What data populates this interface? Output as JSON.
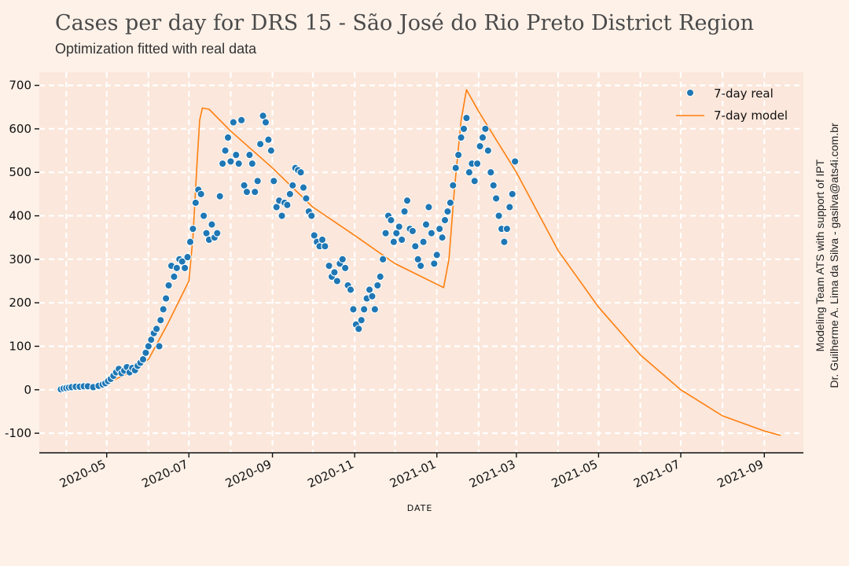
{
  "header": {
    "title": "Cases per day for DRS 15 - São José do Rio Preto District Region",
    "subtitle": "Optimization fitted with real data"
  },
  "credit": {
    "line1": "Modeling Team ATS with support of IPT",
    "line2": "Dr. Guilherme A. Lima da Silva - gasilva@ats4i.com.br"
  },
  "colors": {
    "background": "#fdf1e8",
    "plot_area": "#fbe7db",
    "real": "#1f77b4",
    "model": "#ff7f0e"
  },
  "chart_data": {
    "type": "scatter",
    "title": "Cases per day for DRS 15 - São José do Rio Preto District Region",
    "subtitle": "Optimization fitted with real data",
    "xlabel": "DATE",
    "ylabel": "",
    "xlim": [
      "2020-03-12",
      "2021-09-30"
    ],
    "ylim": [
      -145,
      730
    ],
    "yticks": [
      -100,
      0,
      100,
      200,
      300,
      400,
      500,
      600,
      700
    ],
    "xticks": [
      "2020-05-01",
      "2020-07-01",
      "2020-09-01",
      "2020-11-01",
      "2021-01-01",
      "2021-03-01",
      "2021-05-01",
      "2021-07-01",
      "2021-09-01"
    ],
    "xtick_labels": [
      "2020-05",
      "2020-07",
      "2020-09",
      "2020-11",
      "2021-01",
      "2021-03",
      "2021-05",
      "2021-07",
      "2021-09"
    ],
    "grid": true,
    "legend": {
      "position": "top-right",
      "entries": [
        "7-day real",
        "7-day model"
      ]
    },
    "series": [
      {
        "name": "7-day real",
        "kind": "scatter",
        "points": [
          [
            "2020-03-28",
            1
          ],
          [
            "2020-03-30",
            3
          ],
          [
            "2020-04-01",
            4
          ],
          [
            "2020-04-03",
            5
          ],
          [
            "2020-04-05",
            6
          ],
          [
            "2020-04-08",
            7
          ],
          [
            "2020-04-11",
            7
          ],
          [
            "2020-04-14",
            8
          ],
          [
            "2020-04-17",
            8
          ],
          [
            "2020-04-21",
            6
          ],
          [
            "2020-04-25",
            9
          ],
          [
            "2020-04-28",
            12
          ],
          [
            "2020-04-30",
            15
          ],
          [
            "2020-05-02",
            20
          ],
          [
            "2020-05-04",
            25
          ],
          [
            "2020-05-06",
            32
          ],
          [
            "2020-05-08",
            40
          ],
          [
            "2020-05-10",
            48
          ],
          [
            "2020-05-12",
            38
          ],
          [
            "2020-05-14",
            44
          ],
          [
            "2020-05-16",
            52
          ],
          [
            "2020-05-18",
            40
          ],
          [
            "2020-05-20",
            50
          ],
          [
            "2020-05-22",
            45
          ],
          [
            "2020-05-24",
            55
          ],
          [
            "2020-05-26",
            62
          ],
          [
            "2020-05-28",
            70
          ],
          [
            "2020-05-30",
            85
          ],
          [
            "2020-06-01",
            100
          ],
          [
            "2020-06-03",
            115
          ],
          [
            "2020-06-05",
            130
          ],
          [
            "2020-06-07",
            140
          ],
          [
            "2020-06-09",
            100
          ],
          [
            "2020-06-10",
            160
          ],
          [
            "2020-06-12",
            185
          ],
          [
            "2020-06-14",
            210
          ],
          [
            "2020-06-16",
            240
          ],
          [
            "2020-06-18",
            285
          ],
          [
            "2020-06-20",
            260
          ],
          [
            "2020-06-22",
            280
          ],
          [
            "2020-06-24",
            300
          ],
          [
            "2020-06-26",
            295
          ],
          [
            "2020-06-28",
            280
          ],
          [
            "2020-06-30",
            305
          ],
          [
            "2020-07-02",
            340
          ],
          [
            "2020-07-04",
            370
          ],
          [
            "2020-07-06",
            430
          ],
          [
            "2020-07-08",
            460
          ],
          [
            "2020-07-10",
            450
          ],
          [
            "2020-07-12",
            400
          ],
          [
            "2020-07-14",
            360
          ],
          [
            "2020-07-16",
            345
          ],
          [
            "2020-07-18",
            380
          ],
          [
            "2020-07-20",
            350
          ],
          [
            "2020-07-22",
            360
          ],
          [
            "2020-07-24",
            445
          ],
          [
            "2020-07-26",
            520
          ],
          [
            "2020-07-28",
            550
          ],
          [
            "2020-07-30",
            580
          ],
          [
            "2020-08-01",
            525
          ],
          [
            "2020-08-03",
            615
          ],
          [
            "2020-08-05",
            540
          ],
          [
            "2020-08-07",
            520
          ],
          [
            "2020-08-09",
            620
          ],
          [
            "2020-08-11",
            470
          ],
          [
            "2020-08-13",
            455
          ],
          [
            "2020-08-15",
            540
          ],
          [
            "2020-08-17",
            520
          ],
          [
            "2020-08-19",
            455
          ],
          [
            "2020-08-21",
            480
          ],
          [
            "2020-08-23",
            565
          ],
          [
            "2020-08-25",
            630
          ],
          [
            "2020-08-27",
            615
          ],
          [
            "2020-08-29",
            575
          ],
          [
            "2020-08-31",
            550
          ],
          [
            "2020-09-02",
            480
          ],
          [
            "2020-09-04",
            420
          ],
          [
            "2020-09-06",
            435
          ],
          [
            "2020-09-08",
            400
          ],
          [
            "2020-09-10",
            430
          ],
          [
            "2020-09-12",
            425
          ],
          [
            "2020-09-14",
            450
          ],
          [
            "2020-09-16",
            470
          ],
          [
            "2020-09-18",
            510
          ],
          [
            "2020-09-20",
            505
          ],
          [
            "2020-09-22",
            500
          ],
          [
            "2020-09-24",
            465
          ],
          [
            "2020-09-26",
            440
          ],
          [
            "2020-09-28",
            410
          ],
          [
            "2020-09-30",
            400
          ],
          [
            "2020-10-02",
            355
          ],
          [
            "2020-10-04",
            340
          ],
          [
            "2020-10-06",
            330
          ],
          [
            "2020-10-08",
            345
          ],
          [
            "2020-10-10",
            330
          ],
          [
            "2020-10-13",
            285
          ],
          [
            "2020-10-15",
            260
          ],
          [
            "2020-10-17",
            270
          ],
          [
            "2020-10-19",
            250
          ],
          [
            "2020-10-21",
            290
          ],
          [
            "2020-10-23",
            300
          ],
          [
            "2020-10-25",
            280
          ],
          [
            "2020-10-27",
            240
          ],
          [
            "2020-10-29",
            230
          ],
          [
            "2020-10-31",
            185
          ],
          [
            "2020-11-02",
            150
          ],
          [
            "2020-11-04",
            140
          ],
          [
            "2020-11-06",
            160
          ],
          [
            "2020-11-08",
            185
          ],
          [
            "2020-11-10",
            210
          ],
          [
            "2020-11-12",
            230
          ],
          [
            "2020-11-14",
            215
          ],
          [
            "2020-11-16",
            185
          ],
          [
            "2020-11-18",
            240
          ],
          [
            "2020-11-20",
            260
          ],
          [
            "2020-11-22",
            300
          ],
          [
            "2020-11-24",
            360
          ],
          [
            "2020-11-26",
            400
          ],
          [
            "2020-11-28",
            390
          ],
          [
            "2020-11-30",
            340
          ],
          [
            "2020-12-02",
            360
          ],
          [
            "2020-12-04",
            375
          ],
          [
            "2020-12-06",
            345
          ],
          [
            "2020-12-08",
            410
          ],
          [
            "2020-12-10",
            435
          ],
          [
            "2020-12-12",
            370
          ],
          [
            "2020-12-14",
            365
          ],
          [
            "2020-12-16",
            330
          ],
          [
            "2020-12-18",
            300
          ],
          [
            "2020-12-20",
            285
          ],
          [
            "2020-12-22",
            340
          ],
          [
            "2020-12-24",
            380
          ],
          [
            "2020-12-26",
            420
          ],
          [
            "2020-12-28",
            360
          ],
          [
            "2020-12-30",
            290
          ],
          [
            "2021-01-01",
            310
          ],
          [
            "2021-01-03",
            370
          ],
          [
            "2021-01-05",
            350
          ],
          [
            "2021-01-07",
            390
          ],
          [
            "2021-01-09",
            410
          ],
          [
            "2021-01-11",
            430
          ],
          [
            "2021-01-13",
            470
          ],
          [
            "2021-01-15",
            510
          ],
          [
            "2021-01-17",
            540
          ],
          [
            "2021-01-19",
            580
          ],
          [
            "2021-01-21",
            600
          ],
          [
            "2021-01-23",
            625
          ],
          [
            "2021-01-25",
            500
          ],
          [
            "2021-01-27",
            520
          ],
          [
            "2021-01-29",
            480
          ],
          [
            "2021-01-31",
            520
          ],
          [
            "2021-02-02",
            560
          ],
          [
            "2021-02-04",
            580
          ],
          [
            "2021-02-06",
            600
          ],
          [
            "2021-02-08",
            550
          ],
          [
            "2021-02-10",
            500
          ],
          [
            "2021-02-12",
            470
          ],
          [
            "2021-02-14",
            440
          ],
          [
            "2021-02-16",
            400
          ],
          [
            "2021-02-18",
            370
          ],
          [
            "2021-02-20",
            340
          ],
          [
            "2021-02-22",
            370
          ],
          [
            "2021-02-24",
            420
          ],
          [
            "2021-02-26",
            450
          ],
          [
            "2021-02-28",
            525
          ]
        ]
      },
      {
        "name": "7-day model",
        "kind": "line",
        "points": [
          [
            "2020-03-28",
            0
          ],
          [
            "2020-04-15",
            3
          ],
          [
            "2020-05-01",
            15
          ],
          [
            "2020-05-15",
            35
          ],
          [
            "2020-06-01",
            70
          ],
          [
            "2020-06-15",
            150
          ],
          [
            "2020-07-01",
            250
          ],
          [
            "2020-07-04",
            350
          ],
          [
            "2020-07-07",
            520
          ],
          [
            "2020-07-09",
            620
          ],
          [
            "2020-07-11",
            648
          ],
          [
            "2020-07-16",
            645
          ],
          [
            "2020-08-01",
            595
          ],
          [
            "2020-09-01",
            510
          ],
          [
            "2020-10-01",
            420
          ],
          [
            "2020-11-01",
            355
          ],
          [
            "2020-12-01",
            290
          ],
          [
            "2021-01-06",
            235
          ],
          [
            "2021-01-10",
            300
          ],
          [
            "2021-01-14",
            460
          ],
          [
            "2021-01-19",
            620
          ],
          [
            "2021-01-23",
            690
          ],
          [
            "2021-02-01",
            640
          ],
          [
            "2021-03-01",
            500
          ],
          [
            "2021-04-01",
            320
          ],
          [
            "2021-05-01",
            190
          ],
          [
            "2021-06-01",
            80
          ],
          [
            "2021-07-01",
            0
          ],
          [
            "2021-08-01",
            -60
          ],
          [
            "2021-09-01",
            -95
          ],
          [
            "2021-09-13",
            -105
          ]
        ]
      }
    ]
  }
}
